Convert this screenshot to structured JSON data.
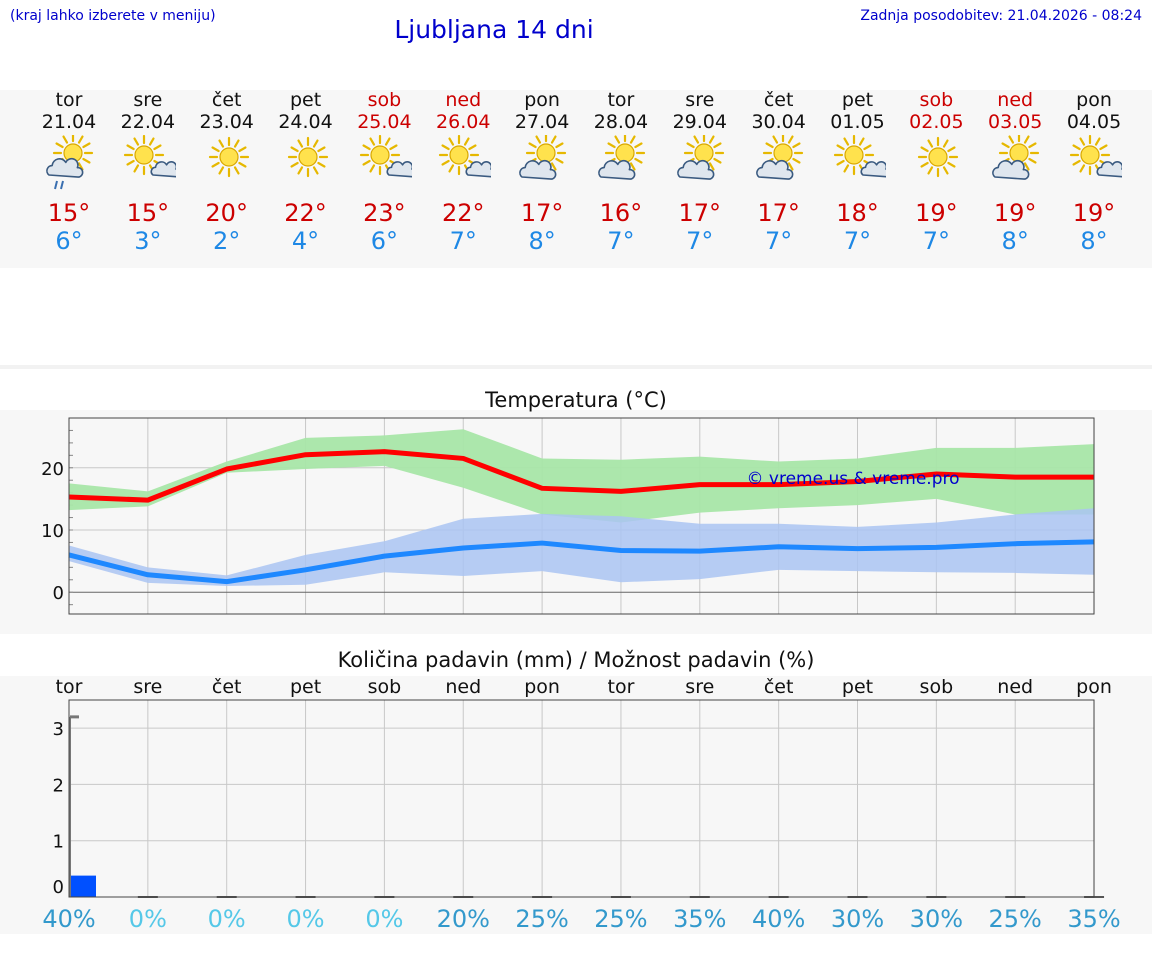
{
  "header": {
    "menu_hint": "(kraj lahko izberete v meniju)",
    "title": "Ljubljana 14 dni",
    "updated": "Zadnja posodobitev: 21.04.2026 - 08:24"
  },
  "days": [
    {
      "name": "tor",
      "date": "21.04",
      "icon": "sun-cloud-rain-icon",
      "tmax": "15°",
      "tmin": "6°",
      "weekend": false
    },
    {
      "name": "sre",
      "date": "22.04",
      "icon": "sun-small-cloud-icon",
      "tmax": "15°",
      "tmin": "3°",
      "weekend": false
    },
    {
      "name": "čet",
      "date": "23.04",
      "icon": "sun-icon",
      "tmax": "20°",
      "tmin": "2°",
      "weekend": false
    },
    {
      "name": "pet",
      "date": "24.04",
      "icon": "sun-icon",
      "tmax": "22°",
      "tmin": "4°",
      "weekend": false
    },
    {
      "name": "sob",
      "date": "25.04",
      "icon": "sun-small-cloud-icon",
      "tmax": "23°",
      "tmin": "6°",
      "weekend": true
    },
    {
      "name": "ned",
      "date": "26.04",
      "icon": "sun-small-cloud-icon",
      "tmax": "22°",
      "tmin": "7°",
      "weekend": true
    },
    {
      "name": "pon",
      "date": "27.04",
      "icon": "sun-cloud-icon",
      "tmax": "17°",
      "tmin": "8°",
      "weekend": false
    },
    {
      "name": "tor",
      "date": "28.04",
      "icon": "sun-cloud-icon",
      "tmax": "16°",
      "tmin": "7°",
      "weekend": false
    },
    {
      "name": "sre",
      "date": "29.04",
      "icon": "sun-cloud-icon",
      "tmax": "17°",
      "tmin": "7°",
      "weekend": false
    },
    {
      "name": "čet",
      "date": "30.04",
      "icon": "sun-cloud-icon",
      "tmax": "17°",
      "tmin": "7°",
      "weekend": false
    },
    {
      "name": "pet",
      "date": "01.05",
      "icon": "sun-small-cloud-icon",
      "tmax": "18°",
      "tmin": "7°",
      "weekend": false
    },
    {
      "name": "sob",
      "date": "02.05",
      "icon": "sun-icon",
      "tmax": "19°",
      "tmin": "7°",
      "weekend": true
    },
    {
      "name": "ned",
      "date": "03.05",
      "icon": "sun-cloud-icon",
      "tmax": "19°",
      "tmin": "8°",
      "weekend": true
    },
    {
      "name": "pon",
      "date": "04.05",
      "icon": "sun-small-cloud-icon",
      "tmax": "19°",
      "tmin": "8°",
      "weekend": false
    }
  ],
  "colors": {
    "max_line": "#ff0000",
    "max_band": "#a8e6a8",
    "min_line": "#1e88ff",
    "min_band": "#aac4f2",
    "precip_bar": "#0050ff",
    "weekend": "#cc0000",
    "prob_low": "#55c8e8",
    "prob_high": "#3399cc"
  },
  "chart_data": [
    {
      "type": "line",
      "title": "Temperatura (°C)",
      "watermark": "© vreme.us & vreme.pro",
      "ylim": [
        -3.5,
        28
      ],
      "yticks": [
        0,
        10,
        20
      ],
      "grid": true,
      "x": [
        "21.04",
        "22.04",
        "23.04",
        "24.04",
        "25.04",
        "26.04",
        "27.04",
        "28.04",
        "29.04",
        "30.04",
        "01.05",
        "02.05",
        "03.05",
        "04.05"
      ],
      "series": [
        {
          "values": [
            15.3,
            14.8,
            19.8,
            22.1,
            22.6,
            21.5,
            16.7,
            16.2,
            17.3,
            17.3,
            17.8,
            19.0,
            18.5,
            18.5
          ],
          "band_low": [
            13.2,
            13.8,
            19.2,
            19.8,
            20.3,
            16.8,
            12.5,
            11.2,
            12.8,
            13.5,
            14.0,
            15.0,
            12.5,
            12.5
          ],
          "band_high": [
            17.5,
            16.2,
            21.0,
            24.8,
            25.2,
            26.2,
            21.5,
            21.3,
            21.8,
            21.0,
            21.5,
            23.2,
            23.2,
            23.8
          ]
        },
        {
          "values": [
            6.0,
            2.8,
            1.7,
            3.6,
            5.8,
            7.1,
            7.9,
            6.7,
            6.6,
            7.3,
            7.0,
            7.2,
            7.8,
            8.1
          ],
          "band_low": [
            5.0,
            1.5,
            1.0,
            1.2,
            3.2,
            2.6,
            3.4,
            1.6,
            2.1,
            3.6,
            3.4,
            3.2,
            3.1,
            2.8
          ],
          "band_high": [
            7.5,
            4.0,
            2.7,
            6.0,
            8.2,
            11.8,
            12.6,
            12.2,
            11.0,
            11.0,
            10.5,
            11.2,
            12.5,
            13.5
          ]
        }
      ]
    },
    {
      "type": "bar",
      "title": "Količina padavin (mm) / Možnost padavin (%)",
      "ylim": [
        0,
        3.5
      ],
      "yticks": [
        0,
        1,
        2,
        3
      ],
      "grid": true,
      "categories": [
        "tor",
        "sre",
        "čet",
        "pet",
        "sob",
        "ned",
        "pon",
        "tor",
        "sre",
        "čet",
        "pet",
        "sob",
        "ned",
        "pon"
      ],
      "values": [
        0.38,
        0,
        0,
        0,
        0,
        0,
        0,
        0,
        0,
        0,
        0,
        0,
        0,
        0
      ],
      "marker_max": 3.2,
      "probabilities": [
        "40%",
        "0%",
        "0%",
        "0%",
        "0%",
        "20%",
        "25%",
        "25%",
        "35%",
        "40%",
        "30%",
        "30%",
        "25%",
        "35%"
      ]
    }
  ]
}
